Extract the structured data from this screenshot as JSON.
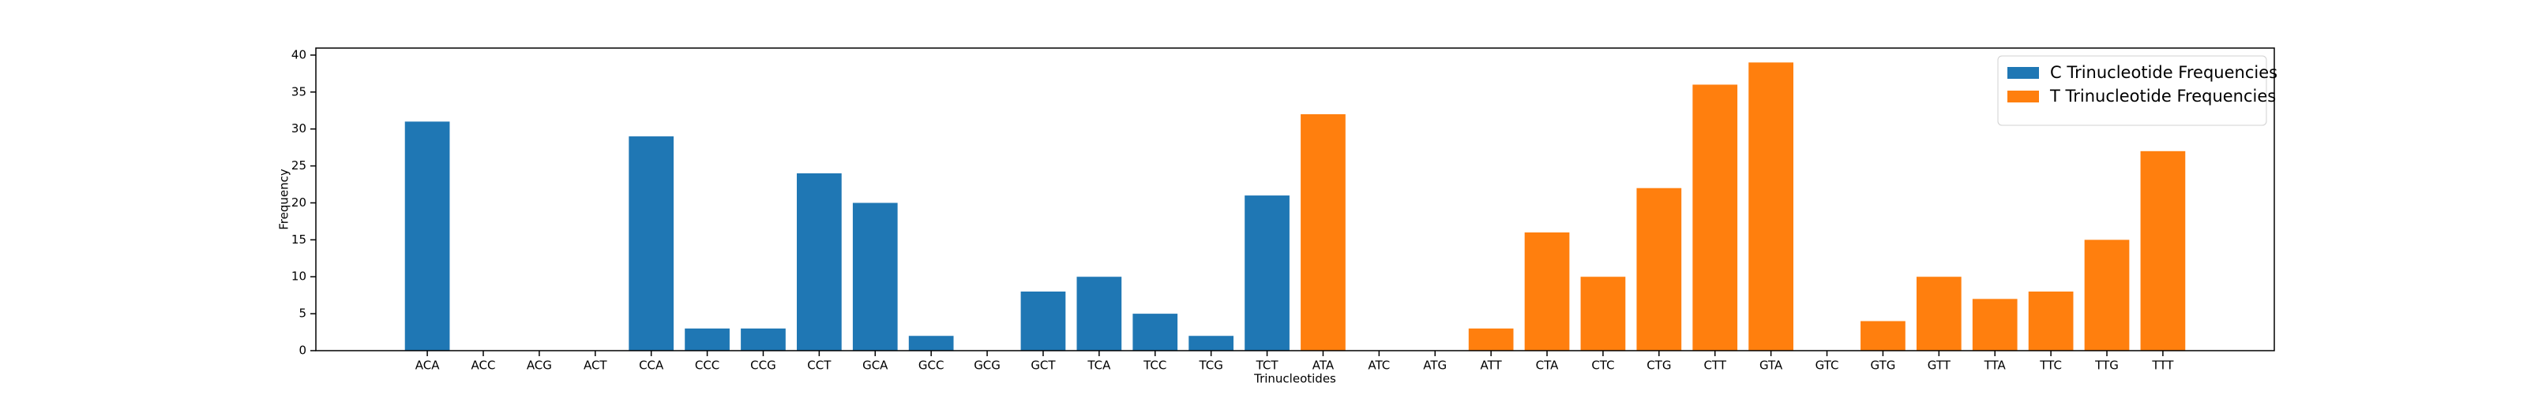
{
  "chart_data": {
    "type": "bar",
    "categories": [
      "ACA",
      "ACC",
      "ACG",
      "ACT",
      "CCA",
      "CCC",
      "CCG",
      "CCT",
      "GCA",
      "GCC",
      "GCG",
      "GCT",
      "TCA",
      "TCC",
      "TCG",
      "TCT",
      "ATA",
      "ATC",
      "ATG",
      "ATT",
      "CTA",
      "CTC",
      "CTG",
      "CTT",
      "GTA",
      "GTC",
      "GTG",
      "GTT",
      "TTA",
      "TTC",
      "TTG",
      "TTT"
    ],
    "series": [
      {
        "name": "C Trinucleotide Frequencies",
        "color": "#1f77b4",
        "values": [
          31,
          0,
          0,
          0,
          29,
          3,
          3,
          24,
          20,
          2,
          0,
          8,
          10,
          5,
          2,
          21,
          null,
          null,
          null,
          null,
          null,
          null,
          null,
          null,
          null,
          null,
          null,
          null,
          null,
          null,
          null,
          null
        ]
      },
      {
        "name": "T Trinucleotide Frequencies",
        "color": "#ff7f0e",
        "values": [
          null,
          null,
          null,
          null,
          null,
          null,
          null,
          null,
          null,
          null,
          null,
          null,
          null,
          null,
          null,
          null,
          32,
          0,
          0,
          3,
          16,
          10,
          22,
          36,
          39,
          0,
          4,
          10,
          7,
          8,
          15,
          27
        ]
      }
    ],
    "xlabel": "Trinucleotides",
    "ylabel": "Frequency",
    "ylim": [
      0,
      40.95
    ],
    "yticks": [
      0,
      5,
      10,
      15,
      20,
      25,
      30,
      35,
      40
    ],
    "legend": "upper right",
    "grid": false
  }
}
